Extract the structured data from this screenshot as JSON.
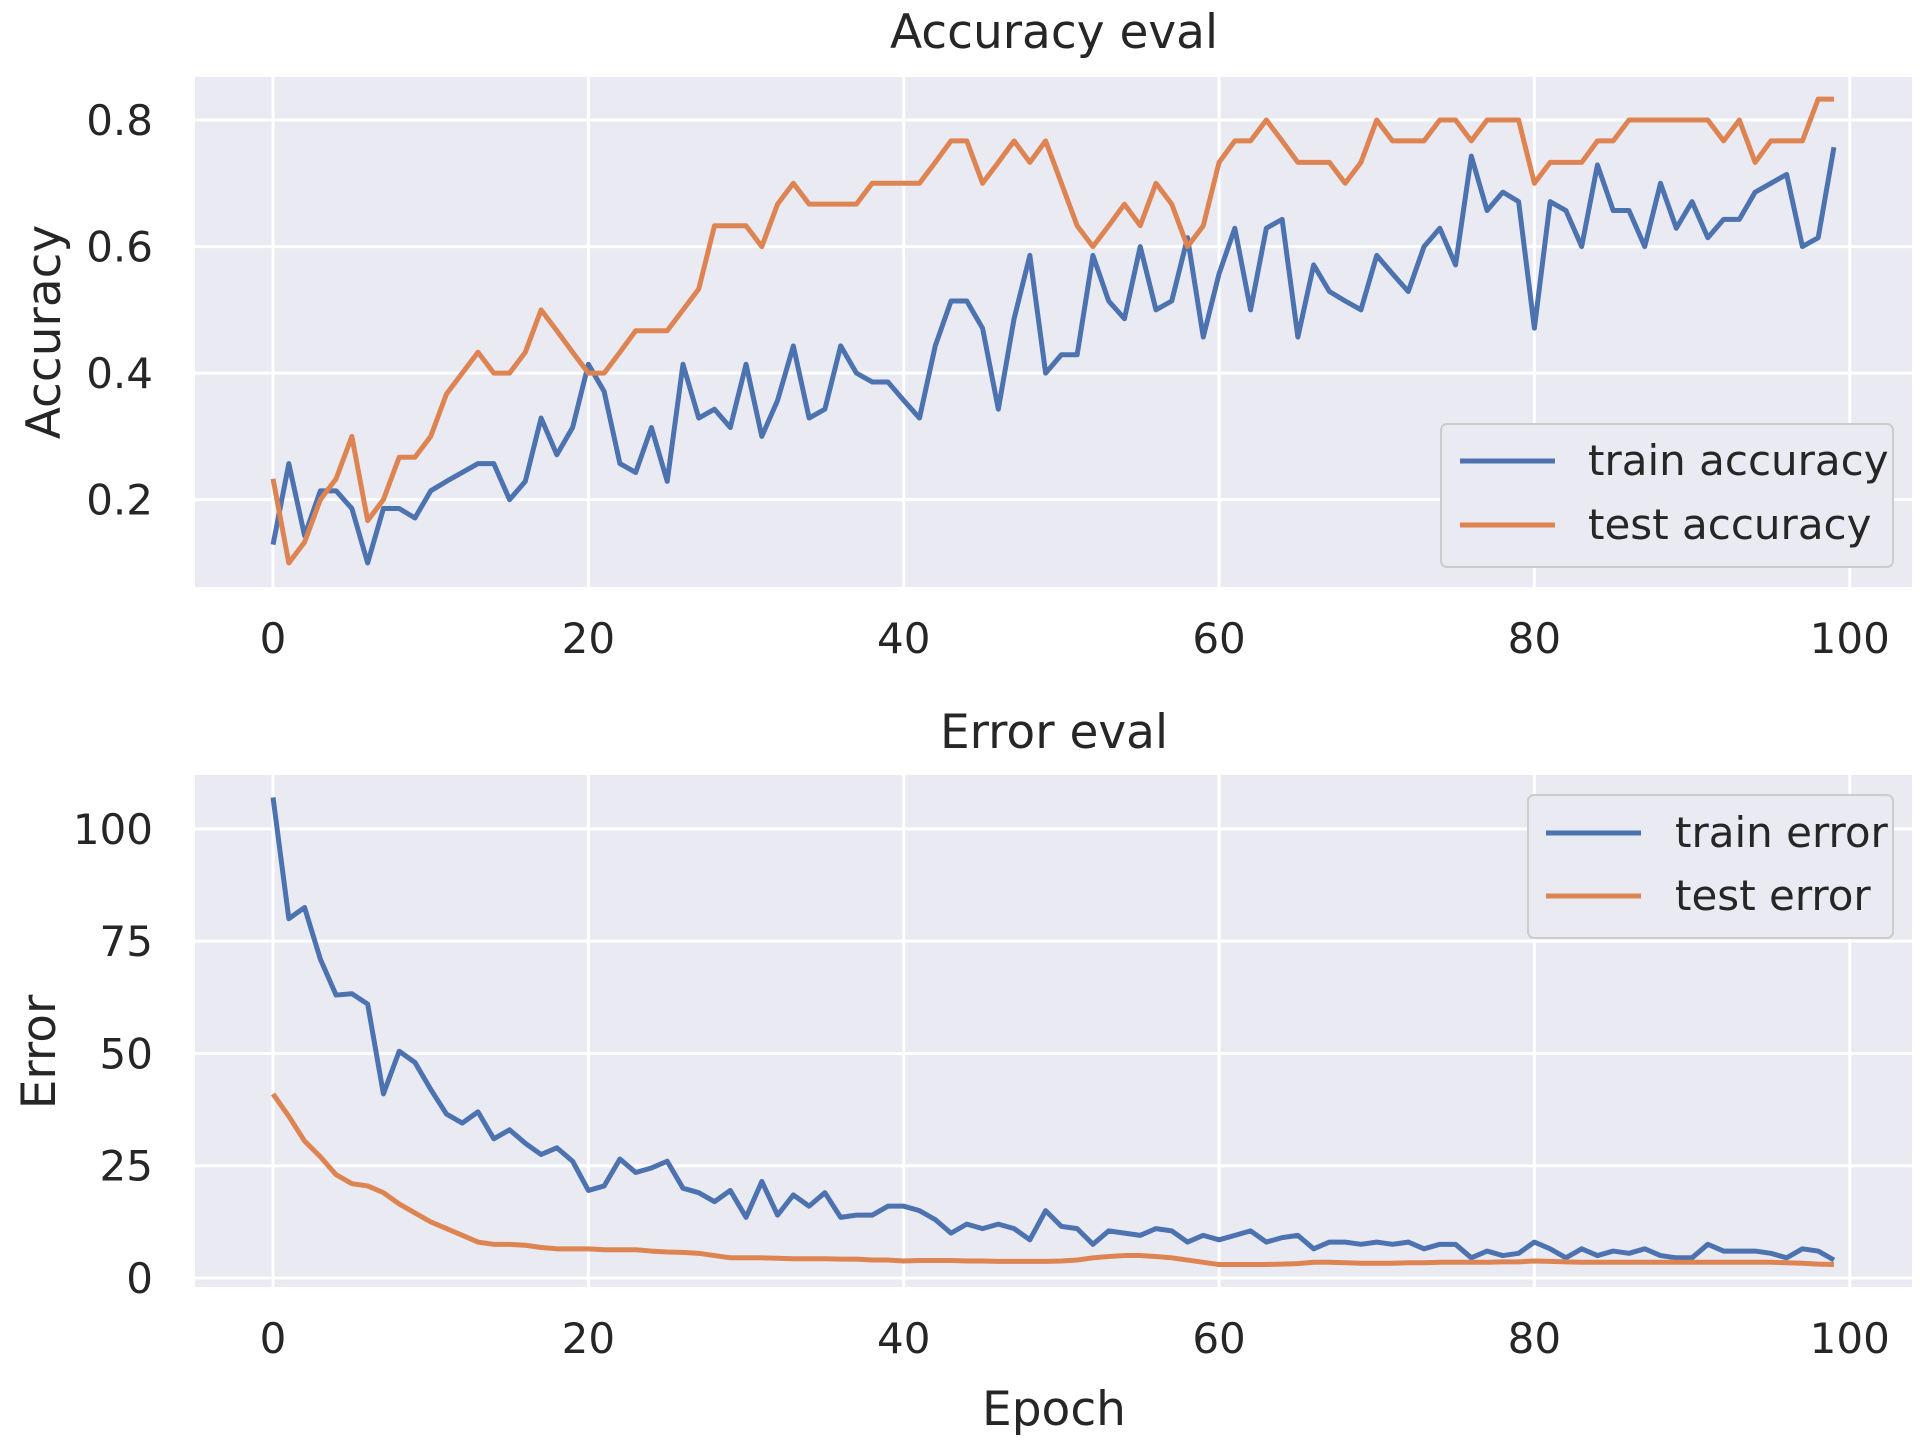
{
  "chart_data": [
    {
      "type": "line",
      "title": "Accuracy eval",
      "xlabel": "",
      "ylabel": "Accuracy",
      "xlim": [
        -4.95,
        103.95
      ],
      "ylim": [
        0.062,
        0.868
      ],
      "xticks": [
        0,
        20,
        40,
        60,
        80,
        100
      ],
      "yticks": [
        0.2,
        0.4,
        0.6,
        0.8
      ],
      "grid": true,
      "legend_position": "lower-right",
      "series": [
        {
          "name": "train accuracy",
          "color": "#4c72b0",
          "values": [
            0.129,
            0.257,
            0.143,
            0.214,
            0.214,
            0.186,
            0.1,
            0.186,
            0.186,
            0.171,
            0.214,
            0.229,
            0.243,
            0.257,
            0.257,
            0.2,
            0.229,
            0.329,
            0.271,
            0.314,
            0.414,
            0.371,
            0.257,
            0.243,
            0.314,
            0.229,
            0.414,
            0.329,
            0.343,
            0.314,
            0.414,
            0.3,
            0.357,
            0.443,
            0.329,
            0.343,
            0.443,
            0.4,
            0.386,
            0.386,
            0.357,
            0.329,
            0.443,
            0.514,
            0.514,
            0.471,
            0.343,
            0.486,
            0.586,
            0.4,
            0.429,
            0.429,
            0.586,
            0.514,
            0.486,
            0.6,
            0.5,
            0.514,
            0.614,
            0.457,
            0.557,
            0.629,
            0.5,
            0.629,
            0.643,
            0.457,
            0.571,
            0.529,
            0.514,
            0.5,
            0.586,
            0.557,
            0.529,
            0.6,
            0.629,
            0.571,
            0.743,
            0.657,
            0.686,
            0.671,
            0.471,
            0.671,
            0.657,
            0.6,
            0.729,
            0.657,
            0.657,
            0.6,
            0.7,
            0.629,
            0.671,
            0.614,
            0.643,
            0.643,
            0.686,
            0.7,
            0.714,
            0.6,
            0.614,
            0.757
          ]
        },
        {
          "name": "test accuracy",
          "color": "#dd8452",
          "values": [
            0.233,
            0.1,
            0.133,
            0.2,
            0.233,
            0.3,
            0.167,
            0.2,
            0.267,
            0.267,
            0.3,
            0.367,
            0.4,
            0.433,
            0.4,
            0.4,
            0.433,
            0.5,
            0.467,
            0.433,
            0.4,
            0.4,
            0.433,
            0.467,
            0.467,
            0.467,
            0.5,
            0.533,
            0.633,
            0.633,
            0.633,
            0.6,
            0.667,
            0.7,
            0.667,
            0.667,
            0.667,
            0.667,
            0.7,
            0.7,
            0.7,
            0.7,
            0.733,
            0.767,
            0.767,
            0.7,
            0.733,
            0.767,
            0.733,
            0.767,
            0.7,
            0.633,
            0.6,
            0.633,
            0.667,
            0.633,
            0.7,
            0.667,
            0.6,
            0.633,
            0.733,
            0.767,
            0.767,
            0.8,
            0.767,
            0.733,
            0.733,
            0.733,
            0.7,
            0.733,
            0.8,
            0.767,
            0.767,
            0.767,
            0.8,
            0.8,
            0.767,
            0.8,
            0.8,
            0.8,
            0.7,
            0.733,
            0.733,
            0.733,
            0.767,
            0.767,
            0.8,
            0.8,
            0.8,
            0.8,
            0.8,
            0.8,
            0.767,
            0.8,
            0.733,
            0.767,
            0.767,
            0.767,
            0.833,
            0.833
          ]
        }
      ]
    },
    {
      "type": "line",
      "title": "Error eval",
      "xlabel": "Epoch",
      "ylabel": "Error",
      "xlim": [
        -4.95,
        103.95
      ],
      "ylim": [
        -2.0,
        112.0
      ],
      "xticks": [
        0,
        20,
        40,
        60,
        80,
        100
      ],
      "yticks": [
        0,
        25,
        50,
        75,
        100
      ],
      "grid": true,
      "legend_position": "upper-right",
      "series": [
        {
          "name": "train error",
          "color": "#4c72b0",
          "values": [
            107,
            80,
            82.5,
            71,
            63,
            63.3,
            61,
            41,
            50.5,
            48,
            42,
            36.5,
            34.5,
            37,
            31,
            33,
            30,
            27.5,
            29,
            26,
            19.5,
            20.5,
            26.5,
            23.5,
            24.5,
            26,
            20,
            19,
            17,
            19.5,
            13.5,
            21.5,
            14,
            18.5,
            16,
            19,
            13.5,
            14,
            14,
            16,
            16,
            15,
            13,
            10,
            12,
            11,
            12,
            11,
            8.5,
            15,
            11.5,
            11,
            7.5,
            10.5,
            10,
            9.5,
            11,
            10.5,
            8,
            9.5,
            8.5,
            9.5,
            10.5,
            8,
            9,
            9.5,
            6.5,
            8,
            8,
            7.5,
            8,
            7.5,
            8,
            6.5,
            7.5,
            7.5,
            4.5,
            6,
            5,
            5.5,
            8,
            6.5,
            4.5,
            6.5,
            5,
            6,
            5.5,
            6.5,
            5,
            4.5,
            4.5,
            7.5,
            6,
            6,
            6,
            5.5,
            4.5,
            6.5,
            6,
            4
          ]
        },
        {
          "name": "test error",
          "color": "#dd8452",
          "values": [
            41,
            36,
            30.5,
            27,
            23,
            21,
            20.5,
            19,
            16.5,
            14.5,
            12.5,
            11,
            9.5,
            8,
            7.5,
            7.5,
            7.3,
            6.8,
            6.5,
            6.5,
            6.5,
            6.3,
            6.3,
            6.3,
            6,
            5.8,
            5.7,
            5.5,
            5,
            4.5,
            4.5,
            4.5,
            4.4,
            4.3,
            4.3,
            4.3,
            4.2,
            4.2,
            4,
            4,
            3.8,
            3.9,
            3.9,
            3.9,
            3.8,
            3.8,
            3.7,
            3.7,
            3.7,
            3.7,
            3.8,
            4,
            4.5,
            4.8,
            5,
            5,
            4.8,
            4.5,
            4,
            3.5,
            3,
            3,
            3,
            3,
            3.1,
            3.2,
            3.5,
            3.5,
            3.4,
            3.3,
            3.3,
            3.3,
            3.4,
            3.4,
            3.5,
            3.5,
            3.5,
            3.5,
            3.6,
            3.6,
            3.8,
            3.7,
            3.6,
            3.5,
            3.5,
            3.5,
            3.5,
            3.5,
            3.5,
            3.5,
            3.5,
            3.5,
            3.5,
            3.5,
            3.5,
            3.5,
            3.4,
            3.3,
            3.1,
            3
          ]
        }
      ]
    }
  ]
}
